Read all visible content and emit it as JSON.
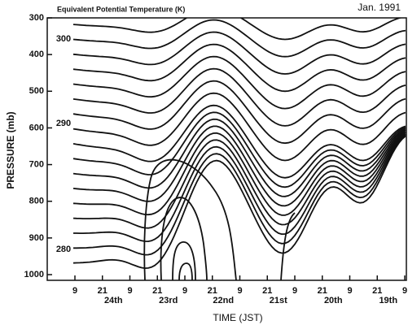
{
  "chart_data": {
    "type": "contour",
    "title": "Equivalent Potential Temperature (K)",
    "subtitle": "Jan. 1991",
    "y_label": "PRESSURE (mb)",
    "x_label": "TIME (JST)",
    "ylim": [
      1000,
      300
    ],
    "yticks": [
      300,
      400,
      500,
      600,
      700,
      800,
      900,
      1000
    ],
    "categories": [
      "9",
      "21",
      "9",
      "21",
      "9",
      "21",
      "9",
      "21",
      "9",
      "21",
      "9",
      "21",
      "9"
    ],
    "day_labels": [
      "24th",
      "23rd",
      "22nd",
      "21st",
      "20th",
      "19th"
    ],
    "contour_labels": [
      300,
      290,
      280
    ]
  }
}
